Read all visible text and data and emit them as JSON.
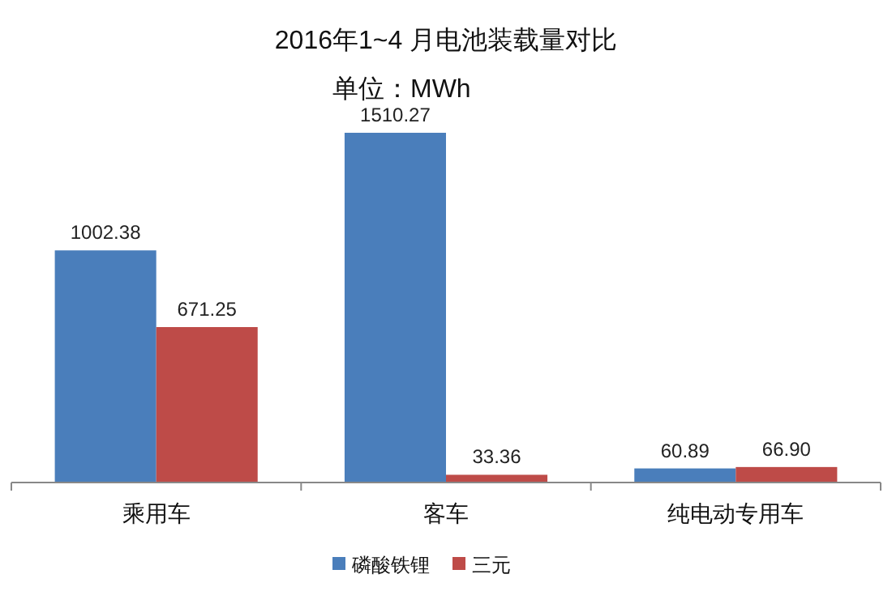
{
  "chart_data": {
    "type": "bar",
    "title": "2016年1~4 月电池装载量对比",
    "subtitle": "单位：MWh",
    "categories": [
      "乘用车",
      "客车",
      "纯电动专用车"
    ],
    "series": [
      {
        "name": "磷酸铁锂",
        "color": "#4a7ebb",
        "values": [
          1002.38,
          1510.27,
          60.89
        ],
        "value_labels": [
          "1002.38",
          "1510.27",
          "60.89"
        ]
      },
      {
        "name": "三元",
        "color": "#be4b48",
        "values": [
          671.25,
          33.36,
          66.9
        ],
        "value_labels": [
          "671.25",
          "33.36",
          "66.90"
        ]
      }
    ],
    "legend": "bottom"
  }
}
